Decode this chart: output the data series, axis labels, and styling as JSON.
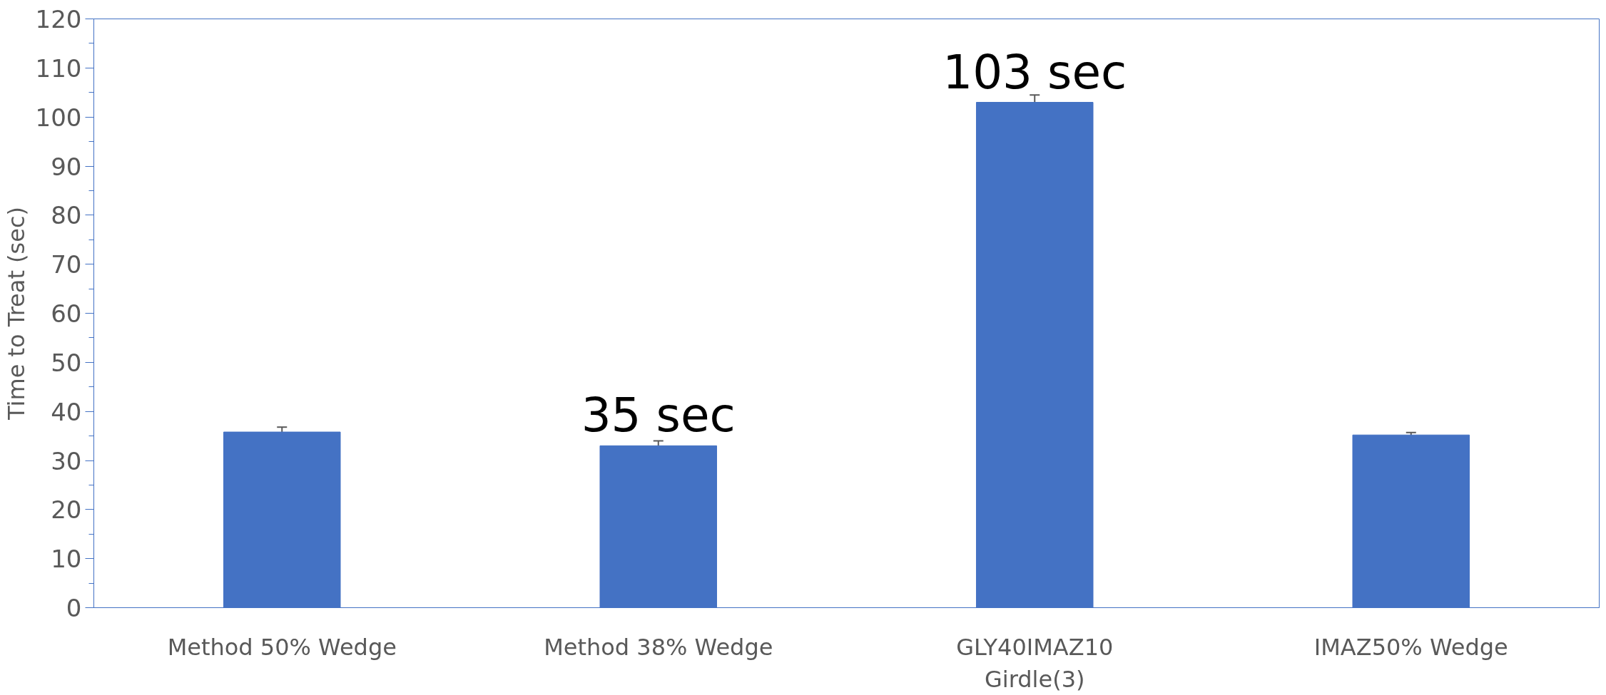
{
  "chart_data": {
    "type": "bar",
    "ylabel": "Time to Treat (sec)",
    "categories": [
      "Method 50% Wedge",
      "Method 38% Wedge",
      "GLY40IMAZ10 Girdle(3)",
      "IMAZ50% Wedge"
    ],
    "values": [
      35.8,
      33,
      103,
      35.2
    ],
    "errors": [
      1,
      1,
      1.5,
      0.5
    ],
    "color": "#4472c4",
    "ylim": [
      0,
      120
    ],
    "yticks": [
      0,
      10,
      20,
      30,
      40,
      50,
      60,
      70,
      80,
      90,
      100,
      110,
      120
    ],
    "annotations": [
      {
        "text": "35 sec",
        "x": "Method 38% Wedge",
        "y": 33
      },
      {
        "text": "103 sec",
        "x": "GLY40IMAZ10 Girdle(3)",
        "y": 103
      }
    ],
    "grid": false
  }
}
